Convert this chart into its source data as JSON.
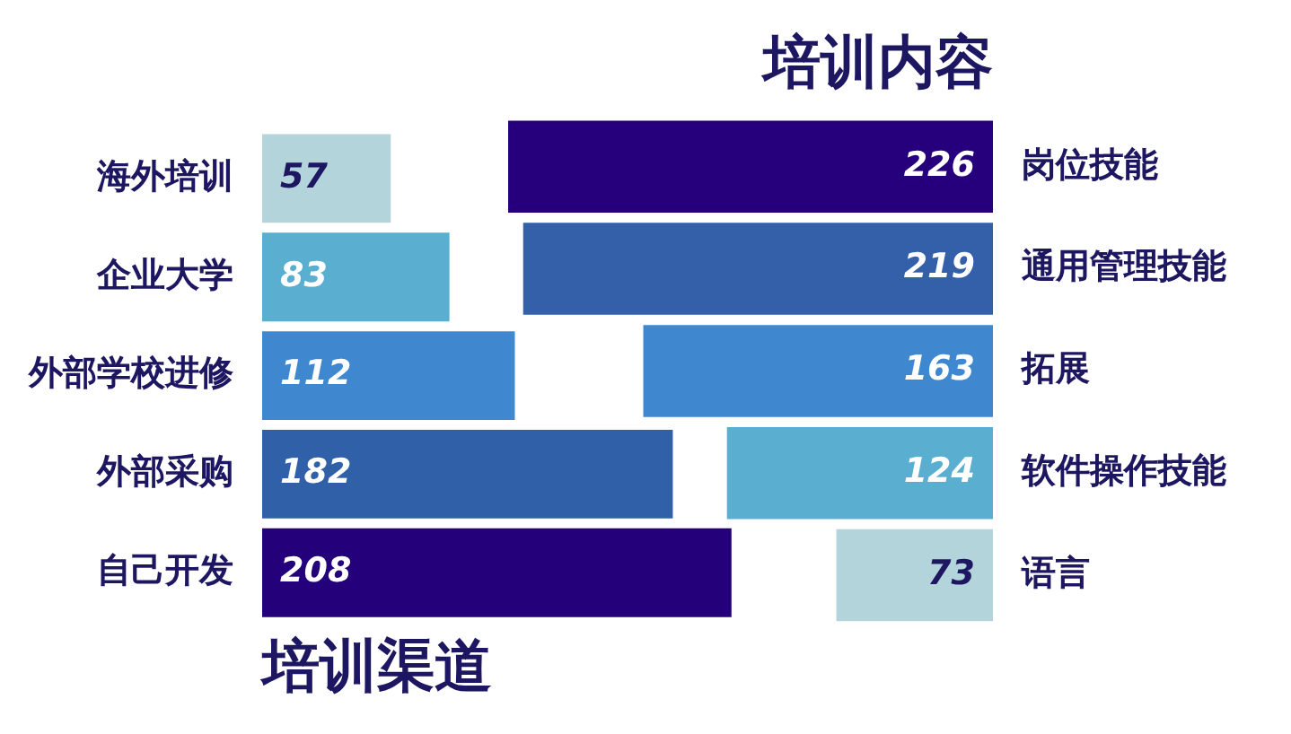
{
  "chart_data": [
    {
      "type": "bar",
      "orientation": "horizontal",
      "title": "培训渠道",
      "categories": [
        "海外培训",
        "企业大学",
        "外部学校进修",
        "外部采购",
        "自己开发"
      ],
      "values": [
        57,
        83,
        112,
        182,
        208
      ],
      "colors": [
        "#b4d4dc",
        "#5aaed0",
        "#3f88d0",
        "#3060a8",
        "#24007a"
      ],
      "tick_labels": "y",
      "data_labels": true
    },
    {
      "type": "bar",
      "orientation": "horizontal",
      "title": "培训内容",
      "categories": [
        "岗位技能",
        "通用管理技能",
        "拓展",
        "软件操作技能",
        "语言"
      ],
      "values": [
        226,
        219,
        163,
        124,
        73
      ],
      "colors": [
        "#26007c",
        "#3360a8",
        "#3f88d0",
        "#5aaed0",
        "#b4d4dc"
      ],
      "tick_labels": "y",
      "data_labels": true
    }
  ]
}
